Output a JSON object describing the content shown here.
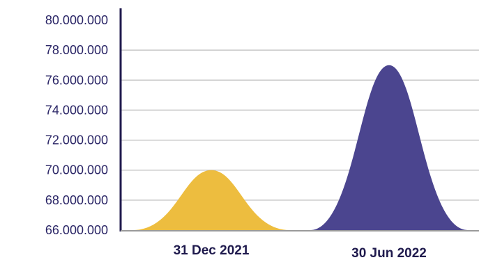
{
  "chart_data": {
    "type": "area",
    "title": "",
    "xlabel": "",
    "ylabel": "",
    "categories": [
      "31 Dec 2021",
      "30 Jun 2022"
    ],
    "values": [
      70000000,
      77000000
    ],
    "colors": [
      "#EDBD3F",
      "#4B458F"
    ],
    "ylim": [
      66000000,
      80000000
    ],
    "yticks": [
      66000000,
      68000000,
      70000000,
      72000000,
      74000000,
      76000000,
      78000000,
      80000000
    ],
    "ytick_labels": [
      "66.000.000",
      "68.000.000",
      "70.000.000",
      "72.000.000",
      "74.000.000",
      "76.000.000",
      "78.000.000",
      "80.000.000"
    ],
    "grid": true,
    "legend": "none"
  }
}
